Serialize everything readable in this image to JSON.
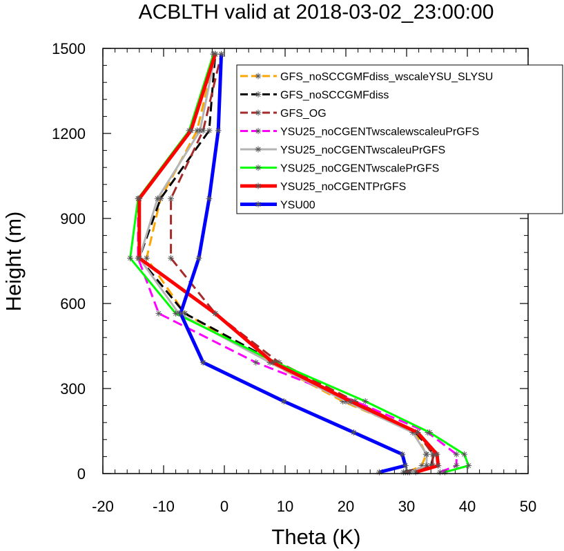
{
  "chart_data": {
    "type": "line",
    "title": "ACBLTH valid at 2018-03-02_23:00:00",
    "xlabel": "Theta (K)",
    "ylabel": "Height (m)",
    "xlim": [
      -20,
      50
    ],
    "ylim": [
      0,
      1500
    ],
    "xticks": [
      -20,
      -10,
      0,
      10,
      20,
      30,
      40,
      50
    ],
    "xtick_labels": [
      "-20",
      "-10",
      "0",
      "10",
      "20",
      "30",
      "40",
      "50"
    ],
    "yticks": [
      0,
      300,
      600,
      900,
      1200,
      1500
    ],
    "ytick_labels": [
      "0",
      "300",
      "600",
      "900",
      "1200",
      "1500"
    ],
    "legend_position": "top-right",
    "series": [
      {
        "name": "GFS_noSCCGMFdiss_wscaleYSU_SLYSU",
        "color": "#ffa500",
        "width": 3,
        "dash": "dashed",
        "points": [
          [
            30.2,
            5
          ],
          [
            32.5,
            28
          ],
          [
            33.2,
            68
          ],
          [
            31.5,
            145
          ],
          [
            19.5,
            255
          ],
          [
            7.5,
            392
          ],
          [
            -6.5,
            565
          ],
          [
            -12.8,
            760
          ],
          [
            -10.5,
            970
          ],
          [
            -4.5,
            1210
          ],
          [
            -1.5,
            1480
          ]
        ]
      },
      {
        "name": "GFS_noSCCGMFdiss",
        "color": "#000000",
        "width": 3,
        "dash": "dashed",
        "points": [
          [
            29.5,
            5
          ],
          [
            34.0,
            28
          ],
          [
            34.5,
            68
          ],
          [
            31.5,
            145
          ],
          [
            20.5,
            255
          ],
          [
            8.5,
            392
          ],
          [
            -6.5,
            565
          ],
          [
            -14.0,
            760
          ],
          [
            -10.5,
            970
          ],
          [
            -2.5,
            1210
          ],
          [
            -1.5,
            1480
          ]
        ]
      },
      {
        "name": "GFS_OG",
        "color": "#a52a2a",
        "width": 3,
        "dash": "dashed",
        "points": [
          [
            29.8,
            5
          ],
          [
            34.3,
            28
          ],
          [
            34.3,
            68
          ],
          [
            31.8,
            145
          ],
          [
            21.5,
            255
          ],
          [
            9.0,
            392
          ],
          [
            -1.5,
            565
          ],
          [
            -8.8,
            760
          ],
          [
            -8.8,
            970
          ],
          [
            -3.5,
            1210
          ],
          [
            -0.5,
            1480
          ]
        ]
      },
      {
        "name": "YSU25_noCGENTwscalewscaleuPrGFS",
        "color": "#ff00ff",
        "width": 3,
        "dash": "dashed",
        "points": [
          [
            35.5,
            5
          ],
          [
            38.2,
            28
          ],
          [
            38.2,
            68
          ],
          [
            33.5,
            145
          ],
          [
            21.5,
            255
          ],
          [
            5.2,
            392
          ],
          [
            -10.8,
            565
          ],
          [
            -14.2,
            760
          ],
          [
            -14.2,
            970
          ],
          [
            -5.5,
            1210
          ],
          [
            -1.8,
            1480
          ]
        ]
      },
      {
        "name": "YSU25_noCGENTwscaleuPrGFS",
        "color": "#b4b4b4",
        "width": 3,
        "dash": "solid",
        "points": [
          [
            30.5,
            5
          ],
          [
            33.3,
            28
          ],
          [
            33.3,
            68
          ],
          [
            31.0,
            145
          ],
          [
            20.0,
            255
          ],
          [
            7.5,
            392
          ],
          [
            -7.5,
            565
          ],
          [
            -14.0,
            760
          ],
          [
            -11.0,
            970
          ],
          [
            -4.0,
            1210
          ],
          [
            -1.5,
            1480
          ]
        ]
      },
      {
        "name": "YSU25_noCGENTwscalePrGFS",
        "color": "#00ff00",
        "width": 3,
        "dash": "solid",
        "points": [
          [
            36.3,
            5
          ],
          [
            40.2,
            28
          ],
          [
            39.5,
            68
          ],
          [
            33.8,
            145
          ],
          [
            23.2,
            255
          ],
          [
            8.5,
            392
          ],
          [
            -8.0,
            565
          ],
          [
            -15.5,
            760
          ],
          [
            -14.2,
            970
          ],
          [
            -5.8,
            1210
          ],
          [
            -1.8,
            1480
          ]
        ]
      },
      {
        "name": "YSU25_noCGENTPrGFS",
        "color": "#ff0000",
        "width": 5,
        "dash": "solid",
        "points": [
          [
            31.5,
            5
          ],
          [
            35.2,
            28
          ],
          [
            35.0,
            68
          ],
          [
            31.8,
            145
          ],
          [
            20.8,
            255
          ],
          [
            8.0,
            392
          ],
          [
            -1.5,
            565
          ],
          [
            -14.0,
            760
          ],
          [
            -14.0,
            970
          ],
          [
            -5.5,
            1210
          ],
          [
            -1.5,
            1480
          ]
        ]
      },
      {
        "name": "YSU00",
        "color": "#0000ff",
        "width": 5,
        "dash": "solid",
        "points": [
          [
            25.5,
            5
          ],
          [
            29.8,
            28
          ],
          [
            29.3,
            68
          ],
          [
            21.3,
            145
          ],
          [
            9.8,
            255
          ],
          [
            -3.5,
            392
          ],
          [
            -7.2,
            565
          ],
          [
            -4.2,
            760
          ],
          [
            -2.5,
            970
          ],
          [
            -1.0,
            1210
          ],
          [
            -0.5,
            1480
          ]
        ]
      }
    ]
  }
}
